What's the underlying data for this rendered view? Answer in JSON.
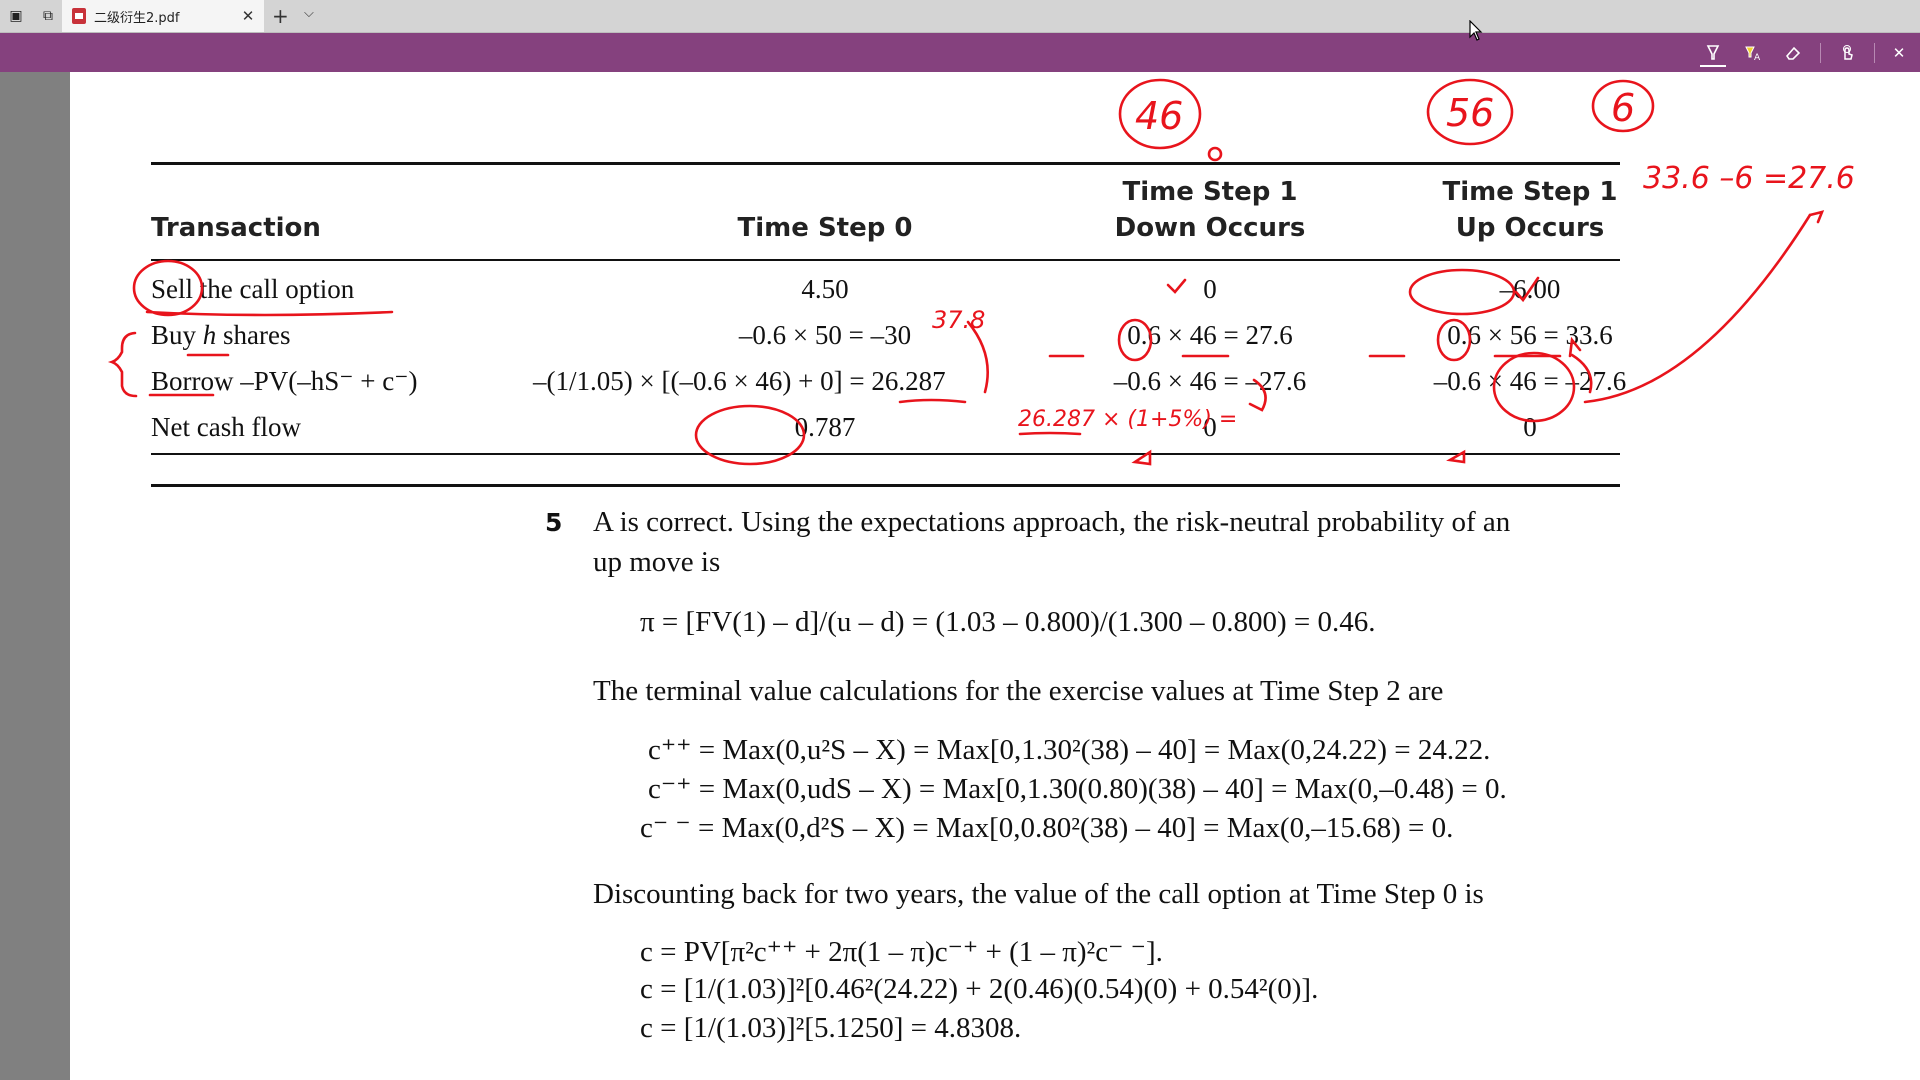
{
  "tabs": {
    "title": "二级衍生2.pdf",
    "close_glyph": "✕",
    "new_tab_glyph": "+",
    "tab_list_glyph": "⌵"
  },
  "toolbar": {
    "icons": [
      "highlight-pen-icon",
      "text-highlight-icon",
      "eraser-icon",
      "touch-write-icon",
      "close-icon"
    ]
  },
  "table": {
    "headers": {
      "transaction": "Transaction",
      "step0": "Time Step 0",
      "down_l1": "Time Step 1",
      "down_l2": "Down Occurs",
      "up_l1": "Time Step 1",
      "up_l2": "Up Occurs"
    },
    "rows": [
      {
        "label": "Sell the call option",
        "step0": "4.50",
        "down": "0",
        "up": "–6.00"
      },
      {
        "label_pre": "Buy ",
        "label_var": "h",
        "label_post": " shares",
        "step0": "–0.6 × 50 = –30",
        "down": "0.6 × 46 = 27.6",
        "up": "0.6 × 56 = 33.6"
      },
      {
        "label": "Borrow –PV(–hS⁻ + c⁻)",
        "step0": "–(1/1.05) × [(–0.6 × 46) + 0] = 26.287",
        "down": "–0.6 × 46 = –27.6",
        "up": "–0.6 × 46 = –27.6"
      },
      {
        "label": "Net cash flow",
        "step0": "0.787",
        "down": "0",
        "up": "0"
      }
    ]
  },
  "solution": {
    "number": "5",
    "intro_l1": "A is correct. Using the expectations approach, the risk-neutral probability of an",
    "intro_l2": "up move is",
    "pi_eq": "π = [FV(1) – d]/(u – d) = (1.03 – 0.800)/(1.300 – 0.800) = 0.46.",
    "terminal_text": "The terminal value calculations for the exercise values at Time Step 2 are",
    "cpp": "c⁺⁺ = Max(0,u²S – X) = Max[0,1.30²(38) – 40] = Max(0,24.22) = 24.22.",
    "cmp": "c⁻⁺ = Max(0,udS – X) = Max[0,1.30(0.80)(38) – 40] = Max(0,–0.48) = 0.",
    "cmm": "c⁻ ⁻ = Max(0,d²S – X) = Max[0,0.80²(38) – 40] = Max(0,–15.68) = 0.",
    "discount_text": "Discounting back for two years, the value of the call option at Time Step 0 is",
    "c1": "c = PV[π²c⁺⁺ + 2π(1 – π)c⁻⁺ + (1 – π)²c⁻ ⁻].",
    "c2": "c = [1/(1.03)]²[0.46²(24.22) + 2(0.46)(0.54)(0) + 0.54²(0)].",
    "c3": "c = [1/(1.03)]²[5.1250] = 4.8308."
  },
  "annotations": {
    "color": "#e8141c",
    "circle_46": "46",
    "circle_56": "56",
    "circle_6": "6",
    "top_right_calc": "33.6 –6 =27.6",
    "note_37": "37.8",
    "note_growth": "26.287 × (1+5%) = ",
    "note_small_a": "∆",
    "note_small_b": "∆"
  }
}
